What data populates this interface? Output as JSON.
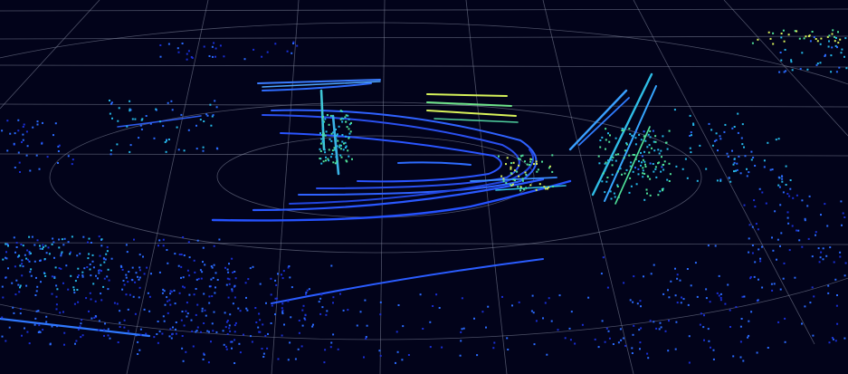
{
  "scene": {
    "kind": "lidar-point-cloud",
    "background_color": "#02031a",
    "grid_color": "#8a8fa6",
    "colormap": [
      "#1a2fd6",
      "#2b6bff",
      "#25b8e8",
      "#4fe39a",
      "#d9f25a"
    ],
    "range_rings": 3,
    "grid_lines_visible": true
  }
}
